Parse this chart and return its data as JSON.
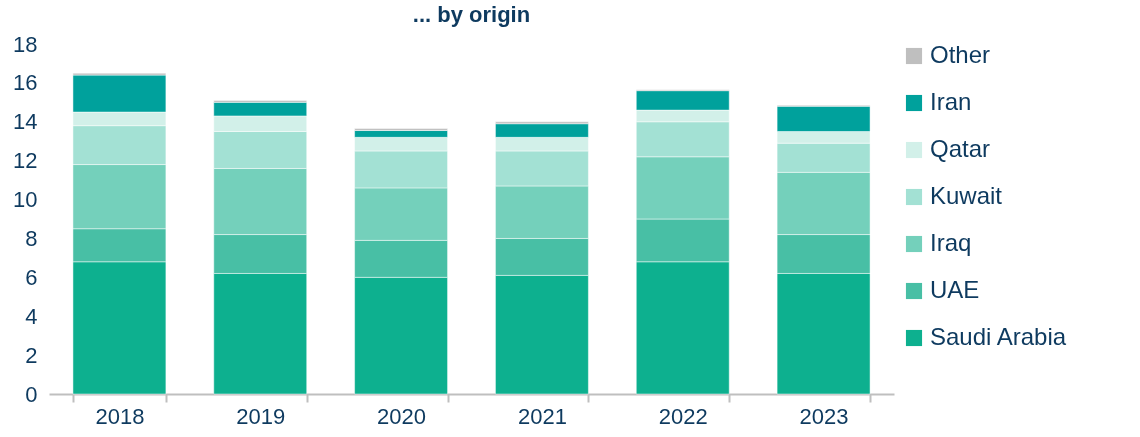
{
  "chart_data": {
    "type": "bar",
    "title": "... by origin",
    "stacked": true,
    "legend": "right",
    "grid": false,
    "categories": [
      "2018",
      "2019",
      "2020",
      "2021",
      "2022",
      "2023"
    ],
    "ylim": [
      0,
      18
    ],
    "yticks": [
      0,
      2,
      4,
      6,
      8,
      10,
      12,
      14,
      16,
      18
    ],
    "series": [
      {
        "name": "Saudi Arabia",
        "color": "#0db08f",
        "values": [
          6.8,
          6.2,
          6.0,
          6.1,
          6.8,
          6.2
        ]
      },
      {
        "name": "UAE",
        "color": "#48bfa5",
        "values": [
          1.7,
          2.0,
          1.9,
          1.9,
          2.2,
          2.0
        ]
      },
      {
        "name": "Iraq",
        "color": "#74d0bb",
        "values": [
          3.3,
          3.4,
          2.7,
          2.7,
          3.2,
          3.2
        ]
      },
      {
        "name": "Kuwait",
        "color": "#a3e1d4",
        "values": [
          2.0,
          1.9,
          1.9,
          1.8,
          1.8,
          1.5
        ]
      },
      {
        "name": "Qatar",
        "color": "#d2f0e9",
        "values": [
          0.7,
          0.8,
          0.7,
          0.7,
          0.6,
          0.6
        ]
      },
      {
        "name": "Iran",
        "color": "#00a19c",
        "values": [
          1.9,
          0.7,
          0.35,
          0.7,
          1.0,
          1.3
        ]
      },
      {
        "name": "Other",
        "color": "#bfbfbf",
        "values": [
          0.1,
          0.1,
          0.1,
          0.1,
          0.05,
          0.05
        ]
      }
    ]
  }
}
